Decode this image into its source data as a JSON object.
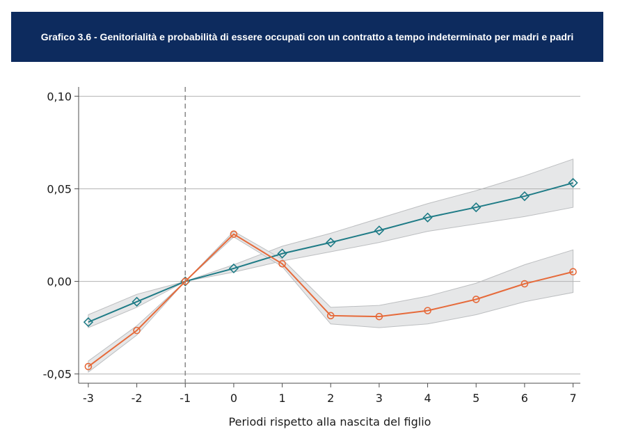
{
  "title": "Grafico 3.6 - Genitorialità e probabilità di essere occupati con un contratto a tempo indeterminato per madri e padri",
  "chart_data": {
    "type": "line",
    "title": "Grafico 3.6 - Genitorialità e probabilità di essere occupati con un contratto a tempo indeterminato per madri e padri",
    "xlabel": "Periodi rispetto alla nascita del figlio",
    "ylabel": "",
    "x": [
      -3,
      -2,
      -1,
      0,
      1,
      2,
      3,
      4,
      5,
      6,
      7
    ],
    "x_tick_labels": [
      "-3",
      "-2",
      "-1",
      "0",
      "1",
      "2",
      "3",
      "4",
      "5",
      "6",
      "7"
    ],
    "y_ticks": [
      -0.05,
      0.0,
      0.05,
      0.1
    ],
    "y_tick_labels": [
      "-0,05",
      "0,00",
      "0,05",
      "0,10"
    ],
    "ylim": [
      -0.055,
      0.105
    ],
    "xlim": [
      -3.2,
      7.15
    ],
    "reference_line_x": -1,
    "grid": "horizontal",
    "legend": "none",
    "series": [
      {
        "marker": "diamond",
        "color": "#1e7b86",
        "values": [
          -0.022,
          -0.011,
          0.0,
          0.007,
          0.015,
          0.021,
          0.0275,
          0.0345,
          0.04,
          0.046,
          0.0532
        ],
        "ci_low": [
          -0.025,
          -0.014,
          0.0,
          0.005,
          0.011,
          0.016,
          0.021,
          0.027,
          0.031,
          0.035,
          0.04
        ],
        "ci_high": [
          -0.018,
          -0.007,
          0.0,
          0.009,
          0.019,
          0.026,
          0.034,
          0.042,
          0.049,
          0.057,
          0.066
        ]
      },
      {
        "marker": "circle",
        "color": "#e66a3a",
        "values": [
          -0.046,
          -0.0265,
          0.0,
          0.0255,
          0.0095,
          -0.0185,
          -0.019,
          -0.0158,
          -0.0097,
          -0.0013,
          0.0052
        ],
        "ci_low": [
          -0.049,
          -0.029,
          0.0,
          0.024,
          0.008,
          -0.023,
          -0.025,
          -0.023,
          -0.018,
          -0.011,
          -0.006
        ],
        "ci_high": [
          -0.043,
          -0.024,
          0.0,
          0.027,
          0.012,
          -0.014,
          -0.013,
          -0.008,
          -0.001,
          0.009,
          0.017
        ]
      }
    ]
  },
  "colors": {
    "header_bg": "#0d2b5e",
    "ci_fill": "#e6e7e8",
    "ci_stroke": "#bcbec0",
    "grid": "#b3b3b3",
    "axis": "#4d4d4d",
    "refline": "#8c8c8c"
  }
}
